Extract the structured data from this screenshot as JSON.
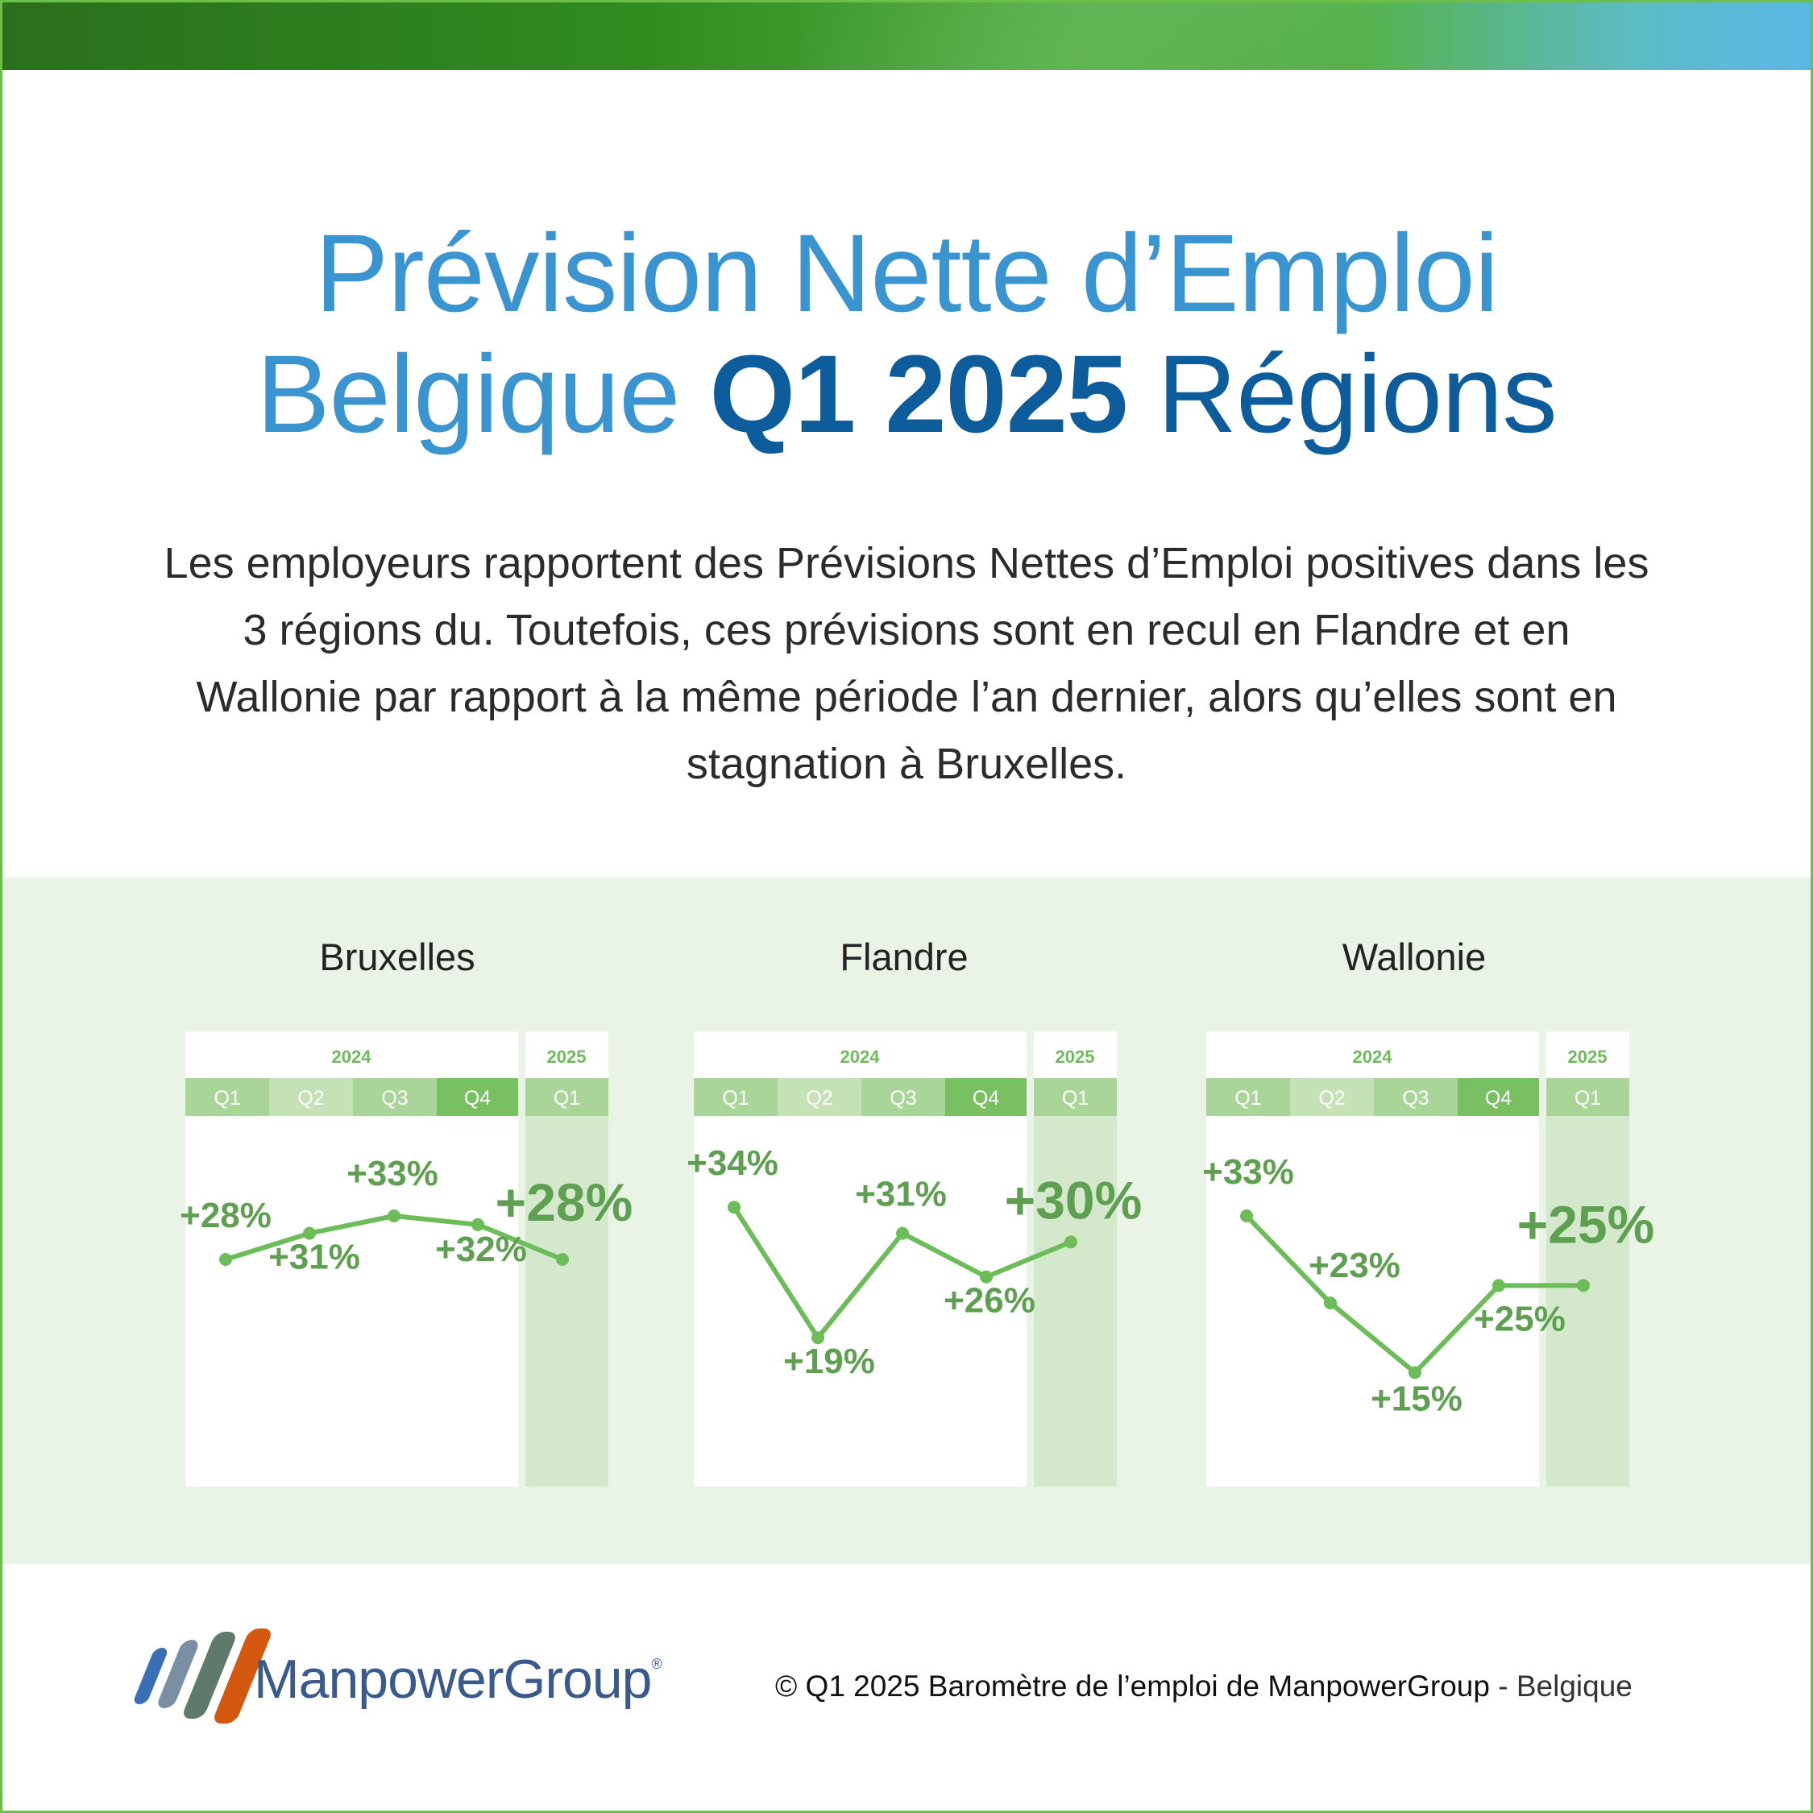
{
  "title": {
    "line1": "Prévision Nette d’Emploi",
    "line2_light": "Belgique",
    "line2_bold": "Q1 2025",
    "line2_region": "Régions"
  },
  "intro": "Les employeurs rapportent des Prévisions Nettes d’Emploi positives dans les 3 régions du. Toutefois, ces prévisions sont en recul en Flandre et en Wallonie par rapport à la même période l’an dernier, alors qu’elles sont en stagnation à Bruxelles.",
  "colors": {
    "title_light": "#3a94d0",
    "title_dark": "#0d5c9c",
    "band_bg": "#eaf4e6",
    "line": "#6cbd5a",
    "label": "#5e9f52",
    "highlight_column": "#d4e9cc"
  },
  "chart_data": [
    {
      "type": "line",
      "title": "Bruxelles",
      "years": [
        "2024",
        "2025"
      ],
      "categories": [
        "Q1",
        "Q2",
        "Q3",
        "Q4",
        "Q1"
      ],
      "values": [
        28,
        31,
        33,
        32,
        28
      ],
      "labels": [
        "+28%",
        "+31%",
        "+33%",
        "+32%",
        "+28%"
      ]
    },
    {
      "type": "line",
      "title": "Flandre",
      "years": [
        "2024",
        "2025"
      ],
      "categories": [
        "Q1",
        "Q2",
        "Q3",
        "Q4",
        "Q1"
      ],
      "values": [
        34,
        19,
        31,
        26,
        30
      ],
      "labels": [
        "+34%",
        "+19%",
        "+31%",
        "+26%",
        "+30%"
      ]
    },
    {
      "type": "line",
      "title": "Wallonie",
      "years": [
        "2024",
        "2025"
      ],
      "categories": [
        "Q1",
        "Q2",
        "Q3",
        "Q4",
        "Q1"
      ],
      "values": [
        33,
        23,
        15,
        25,
        25
      ],
      "labels": [
        "+33%",
        "+23%",
        "+15%",
        "+25%",
        "+25%"
      ]
    }
  ],
  "footer": {
    "brand": "ManpowerGroup",
    "registered": "®",
    "copyright": "© Q1 2025 Baromètre de l’emploi de ManpowerGroup",
    "separator": " - ",
    "country": "Belgique"
  }
}
